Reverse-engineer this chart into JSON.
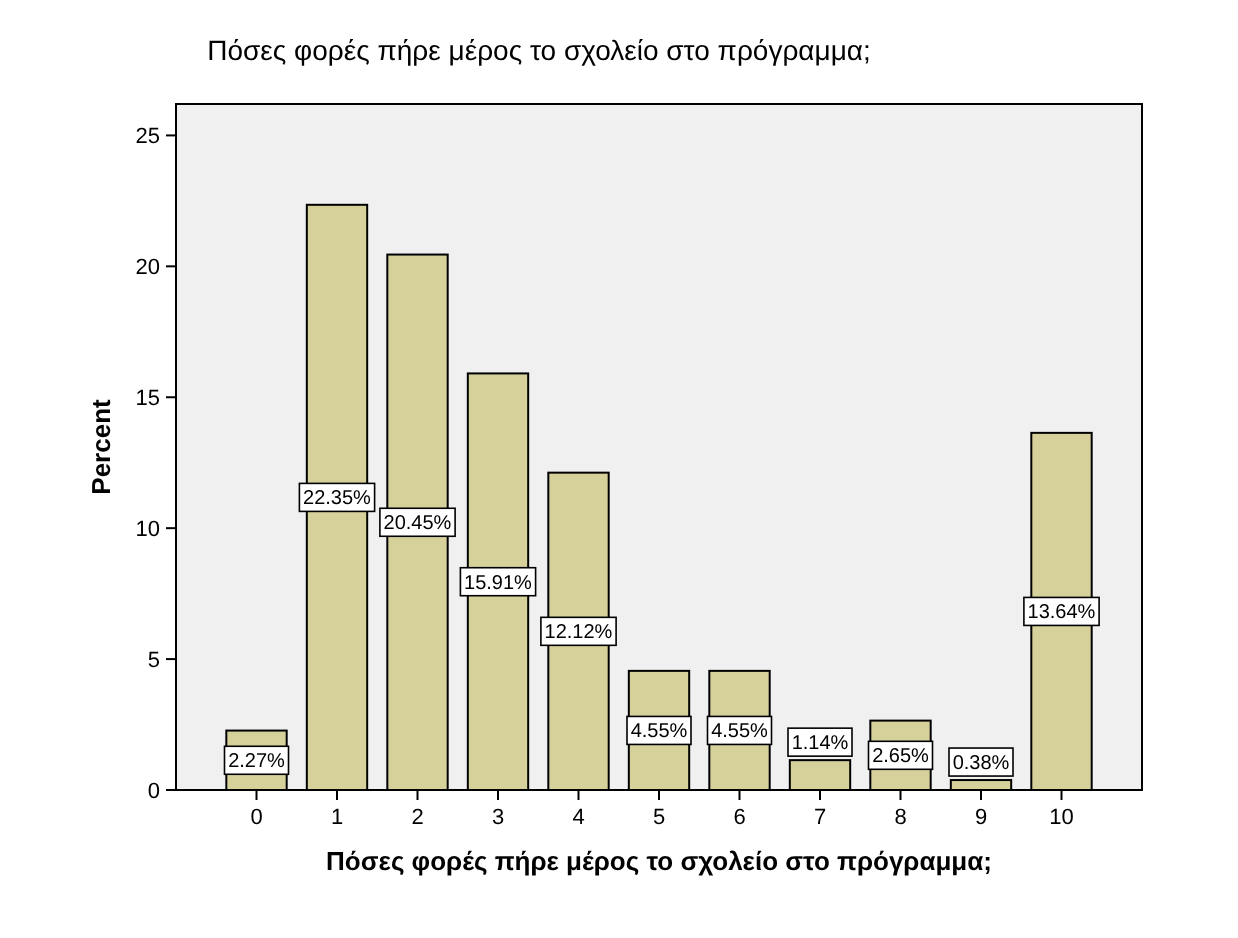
{
  "chart_data": {
    "type": "bar",
    "title": "Πόσες φορές πήρε μέρος το σχολείο στο πρόγραμμα;",
    "xlabel": "Πόσες φορές πήρε μέρος το σχολείο στο πρόγραμμα;",
    "ylabel": "Percent",
    "categories": [
      "0",
      "1",
      "2",
      "3",
      "4",
      "5",
      "6",
      "7",
      "8",
      "9",
      "10"
    ],
    "values": [
      2.27,
      22.35,
      20.45,
      15.91,
      12.12,
      4.55,
      4.55,
      1.14,
      2.65,
      0.38,
      13.64
    ],
    "value_labels": [
      "2.27%",
      "22.35%",
      "20.45%",
      "15.91%",
      "12.12%",
      "4.55%",
      "4.55%",
      "1.14%",
      "2.65%",
      "0.38%",
      "13.64%"
    ],
    "color": "#d6d19a",
    "ylim": [
      0,
      26.2
    ],
    "yticks": [
      0,
      5,
      10,
      15,
      20,
      25
    ],
    "grid": false
  }
}
